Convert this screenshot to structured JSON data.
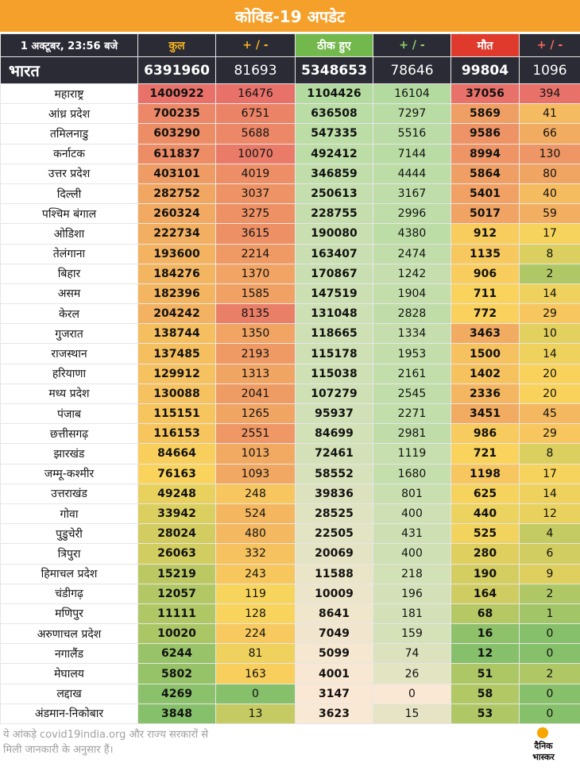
{
  "title": "कोविड-19 अपडेट",
  "header": {
    "date": "1 अक्टूबर, 23:56 बजे",
    "total": "कुल",
    "total_delta": "+ / -",
    "recovered": "ठीक हुए",
    "recovered_delta": "+ / -",
    "deaths": "मौत",
    "deaths_delta": "+ / -"
  },
  "india": {
    "name": "भारत",
    "total": "6391960",
    "total_delta": "81693",
    "recovered": "5348653",
    "recovered_delta": "78646",
    "deaths": "99804",
    "deaths_delta": "1096"
  },
  "chart_data": {
    "type": "table",
    "title": "कोविड-19 अपडेट",
    "columns": [
      "1 अक्टूबर, 23:56 बजे",
      "कुल",
      "+ / -",
      "ठीक हुए",
      "+ / -",
      "मौत",
      "+ / -"
    ],
    "rows": [
      [
        "महाराष्ट्र",
        1400922,
        16476,
        1104426,
        16104,
        37056,
        394
      ],
      [
        "आंध्र प्रदेश",
        700235,
        6751,
        636508,
        7297,
        5869,
        41
      ],
      [
        "तमिलनाडु",
        603290,
        5688,
        547335,
        5516,
        9586,
        66
      ],
      [
        "कर्नाटक",
        611837,
        10070,
        492412,
        7144,
        8994,
        130
      ],
      [
        "उत्तर प्रदेश",
        403101,
        4019,
        346859,
        4444,
        5864,
        80
      ],
      [
        "दिल्ली",
        282752,
        3037,
        250613,
        3167,
        5401,
        40
      ],
      [
        "पश्चिम बंगाल",
        260324,
        3275,
        228755,
        2996,
        5017,
        59
      ],
      [
        "ओडिशा",
        222734,
        3615,
        190080,
        4380,
        912,
        17
      ],
      [
        "तेलंगाना",
        193600,
        2214,
        163407,
        2474,
        1135,
        8
      ],
      [
        "बिहार",
        184276,
        1370,
        170867,
        1242,
        906,
        2
      ],
      [
        "असम",
        182396,
        1585,
        147519,
        1904,
        711,
        14
      ],
      [
        "केरल",
        204242,
        8135,
        131048,
        2828,
        772,
        29
      ],
      [
        "गुजरात",
        138744,
        1350,
        118665,
        1334,
        3463,
        10
      ],
      [
        "राजस्थान",
        137485,
        2193,
        115178,
        1953,
        1500,
        14
      ],
      [
        "हरियाणा",
        129912,
        1313,
        115038,
        2161,
        1402,
        20
      ],
      [
        "मध्य प्रदेश",
        130088,
        2041,
        107279,
        2545,
        2336,
        20
      ],
      [
        "पंजाब",
        115151,
        1265,
        95937,
        2271,
        3451,
        45
      ],
      [
        "छत्तीसगढ़",
        116153,
        2551,
        84699,
        2981,
        986,
        29
      ],
      [
        "झारखंड",
        84664,
        1013,
        72461,
        1119,
        721,
        8
      ],
      [
        "जम्मू-कश्मीर",
        76163,
        1093,
        58552,
        1680,
        1198,
        17
      ],
      [
        "उत्तराखंड",
        49248,
        248,
        39836,
        801,
        625,
        14
      ],
      [
        "गोवा",
        33942,
        524,
        28525,
        400,
        440,
        12
      ],
      [
        "पुडुचेरी",
        28024,
        480,
        22505,
        431,
        525,
        4
      ],
      [
        "त्रिपुरा",
        26063,
        332,
        20069,
        400,
        280,
        6
      ],
      [
        "हिमाचल प्रदेश",
        15219,
        243,
        11588,
        218,
        190,
        9
      ],
      [
        "चंडीगढ़",
        12057,
        119,
        10009,
        196,
        164,
        2
      ],
      [
        "मणिपुर",
        11111,
        128,
        8641,
        181,
        68,
        1
      ],
      [
        "अरुणाचल प्रदेश",
        10020,
        224,
        7049,
        159,
        16,
        0
      ],
      [
        "नगालैंड",
        6244,
        81,
        5099,
        74,
        12,
        0
      ],
      [
        "मेघालय",
        5802,
        163,
        4001,
        26,
        51,
        2
      ],
      [
        "लद्दाख",
        4269,
        0,
        3147,
        0,
        58,
        0
      ],
      [
        "अंडमान-निकोबार",
        3848,
        13,
        3623,
        15,
        53,
        0
      ]
    ]
  },
  "colors": {
    "title_bg": "#f5a02a",
    "header_bg": "#2b2b36",
    "total_label": "#f3b21f",
    "recovered_bg": "#73b84c",
    "deaths_bg": "#e03a2c",
    "scale_low": "#86c06a",
    "scale_mid": "#f9d45c",
    "scale_high": "#e8716a",
    "recovered_low": "#fbe8d4",
    "recovered_high": "#b3dba0"
  },
  "footnote": {
    "line1": "ये आंकड़े covid19india.org और राज्य सरकारों से",
    "line2": "मिली जानकारी के अनुसार हैं।"
  },
  "logo": {
    "line1": "दैनिक",
    "line2": "भास्कर"
  }
}
